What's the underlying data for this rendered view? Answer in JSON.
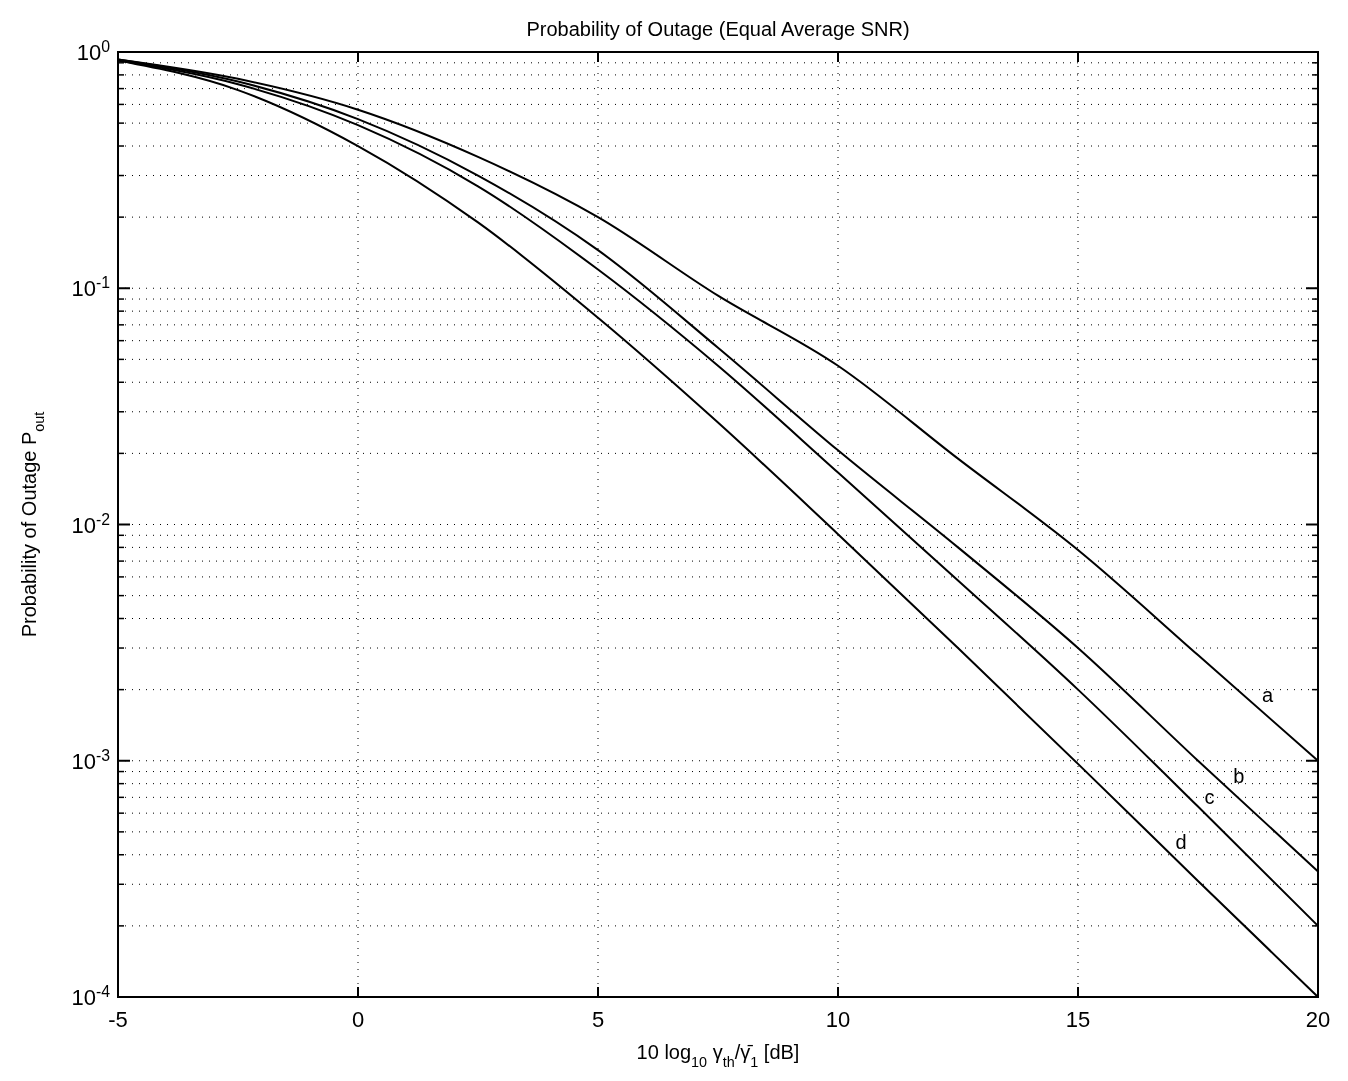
{
  "chart_data": {
    "type": "line",
    "title": "Probability of Outage (Equal Average SNR)",
    "xlabel": "10 log$_{10}$ γ$_{th}$/γ̄$_{1}$ [dB]",
    "ylabel": "Probability of Outage P$_{out}$",
    "x": [
      -5,
      -2.5,
      0,
      2.5,
      5,
      7.5,
      10,
      12.5,
      15,
      17.5,
      20
    ],
    "series": [
      {
        "name": "a",
        "color": "#000000",
        "values": [
          0.93,
          0.77,
          0.57,
          0.36,
          0.2,
          0.093,
          0.047,
          0.019,
          0.0078,
          0.0028,
          0.001
        ]
      },
      {
        "name": "b",
        "color": "#000000",
        "values": [
          0.93,
          0.75,
          0.52,
          0.3,
          0.145,
          0.056,
          0.0206,
          0.008,
          0.003,
          0.001,
          0.00034
        ]
      },
      {
        "name": "c",
        "color": "#000000",
        "values": [
          0.92,
          0.73,
          0.49,
          0.27,
          0.12,
          0.047,
          0.0166,
          0.0058,
          0.002,
          0.00064,
          0.0002
        ]
      },
      {
        "name": "d",
        "color": "#000000",
        "values": [
          0.92,
          0.69,
          0.4,
          0.19,
          0.075,
          0.027,
          0.0091,
          0.003,
          0.00097,
          0.00031,
          0.0001
        ]
      }
    ],
    "xlim": [
      -5,
      20
    ],
    "xticks": [
      -5,
      0,
      5,
      10,
      15,
      20
    ],
    "ylim": [
      0.0001,
      1
    ],
    "yticks": [
      {
        "value": 0.0001,
        "label": "10$^{-4}$"
      },
      {
        "value": 0.001,
        "label": "10$^{-3}$"
      },
      {
        "value": 0.01,
        "label": "10$^{-2}$"
      },
      {
        "value": 0.1,
        "label": "10$^{-1}$"
      },
      {
        "value": 1,
        "label": "10$^{0}$"
      }
    ],
    "log": true,
    "grid": true,
    "line_style": "solid",
    "marker": "none"
  }
}
